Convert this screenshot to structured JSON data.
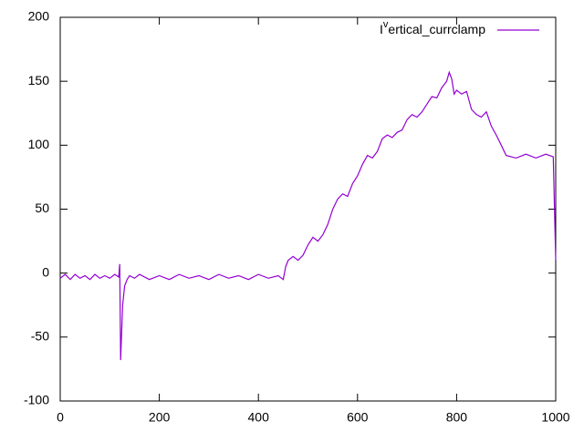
{
  "chart_data": {
    "type": "line",
    "x": [
      0,
      10,
      20,
      30,
      40,
      50,
      60,
      70,
      80,
      90,
      100,
      110,
      118,
      120,
      122,
      126,
      130,
      135,
      140,
      150,
      160,
      180,
      200,
      220,
      240,
      260,
      280,
      300,
      320,
      340,
      360,
      380,
      400,
      420,
      440,
      450,
      455,
      460,
      470,
      480,
      490,
      500,
      510,
      520,
      530,
      540,
      550,
      560,
      570,
      580,
      590,
      600,
      610,
      620,
      630,
      640,
      650,
      660,
      670,
      680,
      690,
      700,
      710,
      720,
      730,
      740,
      750,
      760,
      770,
      780,
      785,
      790,
      795,
      800,
      810,
      820,
      830,
      840,
      850,
      860,
      870,
      880,
      890,
      900,
      920,
      940,
      960,
      980,
      995,
      1000
    ],
    "series": [
      {
        "name": "Ivertical_currclamp",
        "color": "#9400d3",
        "values": [
          -4,
          -1,
          -5,
          -1,
          -4,
          -2,
          -5,
          -1,
          -4,
          -2,
          -4,
          -1,
          -3,
          7,
          -68,
          -25,
          -10,
          -5,
          -2,
          -4,
          -1,
          -5,
          -2,
          -5,
          -1,
          -4,
          -2,
          -5,
          -1,
          -4,
          -2,
          -5,
          -1,
          -4,
          -2,
          -5,
          5,
          10,
          13,
          10,
          14,
          22,
          28,
          25,
          30,
          38,
          50,
          58,
          62,
          60,
          70,
          76,
          85,
          92,
          90,
          95,
          105,
          108,
          106,
          110,
          112,
          120,
          124,
          122,
          126,
          132,
          138,
          137,
          145,
          150,
          157,
          152,
          140,
          143,
          140,
          142,
          128,
          124,
          122,
          126,
          115,
          108,
          100,
          92,
          90,
          93,
          90,
          93,
          91,
          10
        ]
      }
    ],
    "xlim": [
      0,
      1000
    ],
    "xticks": [
      0,
      200,
      400,
      600,
      800,
      1000
    ],
    "ylim": [
      -100,
      200
    ],
    "yticks": [
      -100,
      -50,
      0,
      50,
      100,
      150,
      200
    ],
    "legend": "top-right"
  }
}
